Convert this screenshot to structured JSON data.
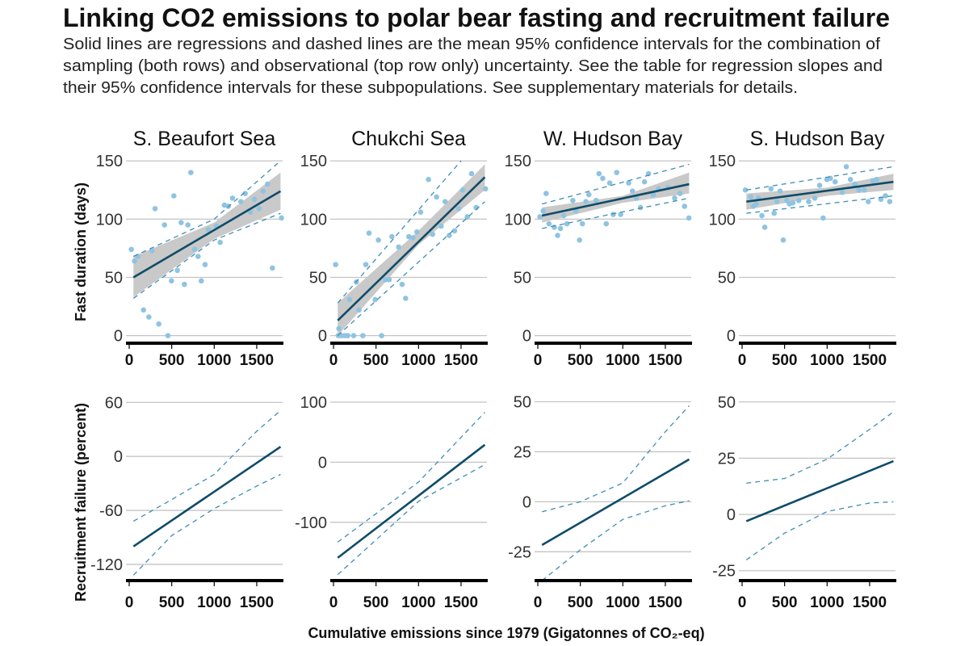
{
  "title": "Linking CO2 emissions to polar bear fasting and recruitment failure",
  "subtitle_lines": [
    "Solid lines are regressions and dashed lines are the mean 95% confidence intervals for the combination of",
    "sampling (both rows) and observational (top row only) uncertainty. See the table for regression slopes and",
    "their 95% confidence intervals for these subpopulations. See supplementary materials for details."
  ],
  "colors": {
    "points": "#8fc4e1",
    "fit": "#0f4c69",
    "ci": "#3f8db4",
    "band": "#c9c9c9",
    "grid": "#c4c4c4",
    "axis": "#000000"
  },
  "chart_data": {
    "type": "scatter",
    "xlabel": "Cumulative emissions since 1979 (Gigatonnes of CO₂-eq)",
    "ylabel_top": "Fast duration (days)",
    "ylabel_bottom": "Recruitment failure (percent)",
    "xlim": [
      -50,
      1800
    ],
    "xticks": [
      0,
      500,
      1000,
      1500
    ],
    "grid": true,
    "panels": [
      {
        "title": "S. Beaufort Sea",
        "top": {
          "ylim": [
            -6.5,
            155
          ],
          "yticks": [
            0,
            50,
            100,
            150
          ],
          "points": [
            [
              25,
              74
            ],
            [
              63,
              64
            ],
            [
              104,
              68
            ],
            [
              168,
              22
            ],
            [
              231,
              16
            ],
            [
              269,
              73
            ],
            [
              304,
              109
            ],
            [
              348,
              10
            ],
            [
              415,
              95
            ],
            [
              456,
              0
            ],
            [
              497,
              47
            ],
            [
              525,
              120
            ],
            [
              566,
              56
            ],
            [
              611,
              97
            ],
            [
              649,
              44
            ],
            [
              690,
              95
            ],
            [
              725,
              140
            ],
            [
              769,
              74
            ],
            [
              810,
              68
            ],
            [
              848,
              47
            ],
            [
              892,
              61
            ],
            [
              930,
              91
            ],
            [
              1025,
              94
            ],
            [
              1070,
              80
            ],
            [
              1120,
              112
            ],
            [
              1165,
              111
            ],
            [
              1215,
              118
            ],
            [
              1313,
              115
            ],
            [
              1364,
              122
            ],
            [
              1424,
              106
            ],
            [
              1472,
              117
            ],
            [
              1528,
              109
            ],
            [
              1576,
              124
            ],
            [
              1627,
              130
            ],
            [
              1684,
              58
            ],
            [
              1791,
              101
            ]
          ],
          "fit": [
            [
              50,
              50
            ],
            [
              1780,
              124
            ]
          ],
          "band": [
            [
              50,
              33,
              68
            ],
            [
              1000,
              83,
              97
            ],
            [
              1780,
              108,
              140
            ]
          ],
          "ci_upper": [
            [
              50,
              68
            ],
            [
              1000,
              100
            ],
            [
              1780,
              150
            ]
          ],
          "ci_lower": [
            [
              50,
              32
            ],
            [
              1000,
              82
            ],
            [
              1780,
              105
            ]
          ]
        },
        "bottom": {
          "ylim": [
            -138,
            63
          ],
          "yticks": [
            -120,
            -60,
            0,
            60
          ],
          "fit": [
            [
              50,
              -100
            ],
            [
              1780,
              10.7
            ]
          ],
          "ci_upper": [
            [
              50,
              -72
            ],
            [
              500,
              -48
            ],
            [
              1000,
              -20
            ],
            [
              1500,
              28
            ],
            [
              1780,
              51
            ]
          ],
          "ci_lower": [
            [
              50,
              -132
            ],
            [
              500,
              -88
            ],
            [
              1000,
              -58
            ],
            [
              1500,
              -33
            ],
            [
              1780,
              -20
            ]
          ]
        }
      },
      {
        "title": "Chukchi Sea",
        "top": {
          "ylim": [
            -6.5,
            155
          ],
          "yticks": [
            0,
            50,
            100,
            150
          ],
          "points": [
            [
              25,
              61
            ],
            [
              57,
              0
            ],
            [
              95,
              0
            ],
            [
              133,
              0
            ],
            [
              168,
              0
            ],
            [
              237,
              0
            ],
            [
              345,
              0
            ],
            [
              566,
              0
            ],
            [
              63,
              6
            ],
            [
              190,
              31
            ],
            [
              269,
              46
            ],
            [
              300,
              22
            ],
            [
              380,
              61
            ],
            [
              418,
              88
            ],
            [
              490,
              31
            ],
            [
              528,
              82
            ],
            [
              611,
              48
            ],
            [
              655,
              48
            ],
            [
              687,
              85
            ],
            [
              766,
              76
            ],
            [
              807,
              44
            ],
            [
              848,
              32
            ],
            [
              886,
              85
            ],
            [
              934,
              84
            ],
            [
              981,
              89
            ],
            [
              1025,
              106
            ],
            [
              1117,
              134
            ],
            [
              1165,
              87
            ],
            [
              1212,
              119
            ],
            [
              1266,
              94
            ],
            [
              1313,
              115
            ],
            [
              1361,
              86
            ],
            [
              1424,
              90
            ],
            [
              1472,
              109
            ],
            [
              1519,
              125
            ],
            [
              1573,
              102
            ],
            [
              1623,
              139
            ],
            [
              1677,
              110
            ],
            [
              1788,
              126
            ]
          ],
          "fit": [
            [
              50,
              13
            ],
            [
              1780,
              136
            ]
          ],
          "band": [
            [
              50,
              0,
              28
            ],
            [
              1000,
              78,
              90
            ],
            [
              1780,
              125,
              147
            ]
          ],
          "ci_upper": [
            [
              50,
              28
            ],
            [
              1500,
              150
            ]
          ],
          "ci_lower": [
            [
              50,
              0
            ],
            [
              1780,
              115
            ]
          ]
        },
        "bottom": {
          "ylim": [
            -197,
            104
          ],
          "yticks": [
            -100,
            0,
            100
          ],
          "fit": [
            [
              50,
              -159
            ],
            [
              1780,
              29
            ]
          ],
          "ci_upper": [
            [
              50,
              -133
            ],
            [
              1000,
              -33
            ],
            [
              1780,
              83
            ]
          ],
          "ci_lower": [
            [
              50,
              -187
            ],
            [
              1000,
              -65
            ],
            [
              1780,
              -4
            ]
          ]
        }
      },
      {
        "title": "W. Hudson Bay",
        "top": {
          "ylim": [
            -6.5,
            155
          ],
          "yticks": [
            0,
            50,
            100,
            150
          ],
          "points": [
            [
              25,
              102
            ],
            [
              63,
              107
            ],
            [
              98,
              122
            ],
            [
              132,
              96
            ],
            [
              195,
              93
            ],
            [
              233,
              86
            ],
            [
              267,
              92
            ],
            [
              305,
              103
            ],
            [
              343,
              96
            ],
            [
              412,
              116
            ],
            [
              450,
              107
            ],
            [
              491,
              82
            ],
            [
              525,
              96
            ],
            [
              566,
              115
            ],
            [
              601,
              121
            ],
            [
              686,
              116
            ],
            [
              720,
              139
            ],
            [
              764,
              135
            ],
            [
              805,
              96
            ],
            [
              846,
              131
            ],
            [
              887,
              104
            ],
            [
              928,
              140
            ],
            [
              975,
              104
            ],
            [
              1069,
              131
            ],
            [
              1113,
              124
            ],
            [
              1160,
              118
            ],
            [
              1208,
              110
            ],
            [
              1255,
              132
            ],
            [
              1302,
              139
            ],
            [
              1358,
              121
            ],
            [
              1421,
              126
            ],
            [
              1531,
              127
            ],
            [
              1610,
              118
            ],
            [
              1673,
              122
            ],
            [
              1726,
              111
            ],
            [
              1777,
              101
            ]
          ],
          "fit": [
            [
              50,
              103
            ],
            [
              1780,
              130
            ]
          ],
          "band": [
            [
              50,
              97,
              110
            ],
            [
              1000,
              114,
              120
            ],
            [
              1780,
              122,
              140
            ]
          ],
          "ci_upper": [
            [
              50,
              113
            ],
            [
              1780,
              147
            ]
          ],
          "ci_lower": [
            [
              50,
              92
            ],
            [
              1780,
              118
            ]
          ]
        },
        "bottom": {
          "ylim": [
            -39.4,
            51
          ],
          "yticks": [
            -25,
            0,
            25,
            50
          ],
          "fit": [
            [
              50,
              -21.6
            ],
            [
              1780,
              21.2
            ]
          ],
          "ci_upper": [
            [
              50,
              -5
            ],
            [
              500,
              0
            ],
            [
              1000,
              9.4
            ],
            [
              1500,
              35
            ],
            [
              1780,
              48
            ]
          ],
          "ci_lower": [
            [
              50,
              -39.4
            ],
            [
              500,
              -24
            ],
            [
              1000,
              -8.8
            ],
            [
              1500,
              -2
            ],
            [
              1780,
              0.5
            ]
          ]
        }
      },
      {
        "title": "S. Hudson Bay",
        "top": {
          "ylim": [
            -6.5,
            155
          ],
          "yticks": [
            0,
            50,
            100,
            150
          ],
          "points": [
            [
              38,
              125
            ],
            [
              101,
              119
            ],
            [
              132,
              111
            ],
            [
              164,
              113
            ],
            [
              195,
              118
            ],
            [
              233,
              103
            ],
            [
              267,
              93
            ],
            [
              340,
              126
            ],
            [
              377,
              105
            ],
            [
              409,
              115
            ],
            [
              447,
              124
            ],
            [
              484,
              82
            ],
            [
              525,
              116
            ],
            [
              557,
              113
            ],
            [
              597,
              114
            ],
            [
              667,
              116
            ],
            [
              783,
              115
            ],
            [
              855,
              118
            ],
            [
              912,
              129
            ],
            [
              953,
              101
            ],
            [
              997,
              134
            ],
            [
              1038,
              135
            ],
            [
              1094,
              132
            ],
            [
              1179,
              123
            ],
            [
              1226,
              145
            ],
            [
              1274,
              134
            ],
            [
              1327,
              130
            ],
            [
              1374,
              125
            ],
            [
              1437,
              125
            ],
            [
              1484,
              115
            ],
            [
              1538,
              133
            ],
            [
              1582,
              134
            ],
            [
              1632,
              117
            ],
            [
              1686,
              120
            ],
            [
              1736,
              115
            ]
          ],
          "fit": [
            [
              50,
              115
            ],
            [
              1780,
              132
            ]
          ],
          "band": [
            [
              50,
              108,
              122
            ],
            [
              1000,
              120,
              127
            ],
            [
              1780,
              125,
              139
            ]
          ],
          "ci_upper": [
            [
              50,
              125
            ],
            [
              1780,
              145
            ]
          ],
          "ci_lower": [
            [
              50,
              105
            ],
            [
              1780,
              120
            ]
          ]
        },
        "bottom": {
          "ylim": [
            -29.4,
            51
          ],
          "yticks": [
            -25,
            0,
            25,
            50
          ],
          "fit": [
            [
              50,
              -3
            ],
            [
              1780,
              23.7
            ]
          ],
          "ci_upper": [
            [
              50,
              13.9
            ],
            [
              500,
              16
            ],
            [
              1000,
              24.6
            ],
            [
              1500,
              37.8
            ],
            [
              1780,
              45.6
            ]
          ],
          "ci_lower": [
            [
              50,
              -20.2
            ],
            [
              500,
              -8.3
            ],
            [
              1000,
              1.3
            ],
            [
              1500,
              5.1
            ],
            [
              1780,
              5.6
            ]
          ]
        }
      }
    ]
  }
}
